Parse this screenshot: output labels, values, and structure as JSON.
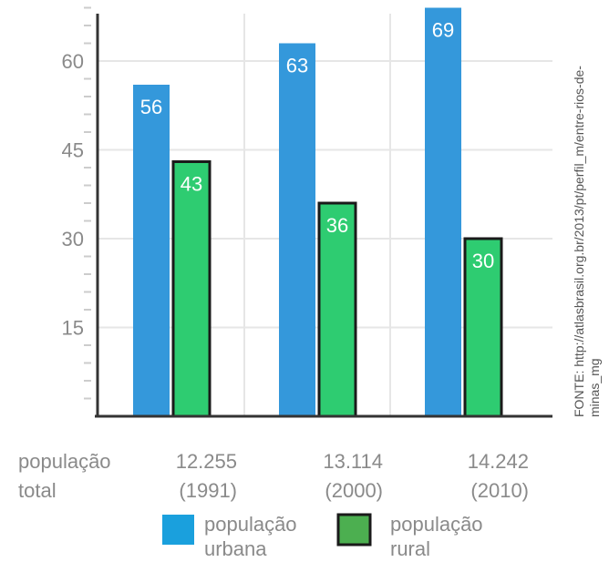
{
  "chart_data": {
    "type": "bar",
    "title": "",
    "xlabel": "",
    "ylabel": "",
    "ylim": [
      0,
      75
    ],
    "yticks": [
      15,
      30,
      45,
      60
    ],
    "grid": true,
    "category_header": [
      "população",
      "total"
    ],
    "categories": [
      {
        "population": "12.255",
        "year": "(1991)"
      },
      {
        "population": "13.114",
        "year": "(2000)"
      },
      {
        "population": "14.242",
        "year": "(2010)"
      }
    ],
    "series": [
      {
        "name": "população urbana",
        "legend_lines": [
          "população",
          "urbana"
        ],
        "color": "#3498db",
        "values": [
          56,
          63,
          69
        ]
      },
      {
        "name": "população rural",
        "legend_lines": [
          "população",
          "rural"
        ],
        "color": "#2ecc71",
        "values": [
          43,
          36,
          30
        ]
      }
    ],
    "legend_position": "bottom",
    "source_lines": [
      "FONTE: http://atlasbrasil.org.br/2013/pt/perfil_m/entre-rios-de-",
      "minas_mg"
    ]
  },
  "colors": {
    "axis": "#333333",
    "grid": "#e6e6e6",
    "minor_tick": "#cccccc",
    "rural_outline": "#1a1a1a"
  }
}
